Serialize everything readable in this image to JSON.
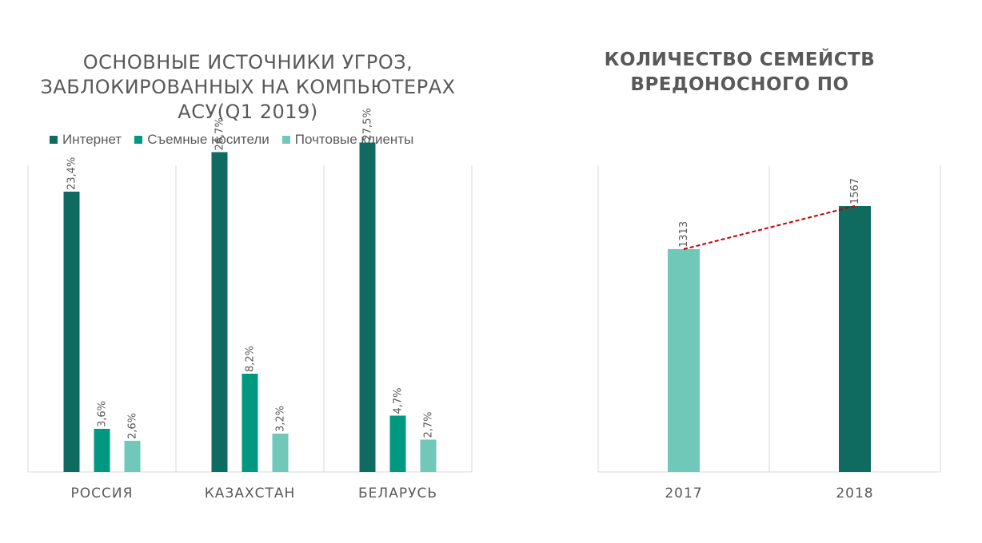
{
  "charts": {
    "left_title": "ОСНОВНЫЕ ИСТОЧНИКИ УГРОЗ, ЗАБЛОКИРОВАННЫХ НА КОМПЬЮТЕРАХ АСУ(Q1 2019)",
    "right_title": "КОЛИЧЕСТВО СЕМЕЙСТВ ВРЕДОНОСНОГО ПО"
  },
  "chart_data": [
    {
      "type": "bar",
      "title": "ОСНОВНЫЕ ИСТОЧНИКИ УГРОЗ, ЗАБЛОКИРОВАННЫХ НА КОМПЬЮТЕРАХ АСУ(Q1 2019)",
      "categories": [
        "РОССИЯ",
        "КАЗАХСТАН",
        "БЕЛАРУСЬ"
      ],
      "series": [
        {
          "name": "Интернет",
          "values": [
            23.4,
            26.7,
            27.5
          ],
          "labels": [
            "23,4%",
            "26,7%",
            "27,5%"
          ],
          "color": "#0f6b5f"
        },
        {
          "name": "Съемные носители",
          "values": [
            3.6,
            8.2,
            4.7
          ],
          "labels": [
            "3,6%",
            "8,2%",
            "4,7%"
          ],
          "color": "#009980"
        },
        {
          "name": "Почтовые клиенты",
          "values": [
            2.6,
            3.2,
            2.7
          ],
          "labels": [
            "2,6%",
            "3,2%",
            "2,7%"
          ],
          "color": "#6fc8b8"
        }
      ],
      "ylim": [
        0,
        30
      ],
      "legend": "top",
      "grid": false
    },
    {
      "type": "bar",
      "title": "КОЛИЧЕСТВО СЕМЕЙСТВ ВРЕДОНОСНОГО ПО",
      "categories": [
        "2017",
        "2018"
      ],
      "values": [
        1313,
        1567
      ],
      "labels": [
        "1313",
        "1567"
      ],
      "colors": [
        "#6fc8b8",
        "#0f6b5f"
      ],
      "trendline_color": "#c00000",
      "ylim": [
        0,
        1800
      ],
      "grid": false
    }
  ]
}
